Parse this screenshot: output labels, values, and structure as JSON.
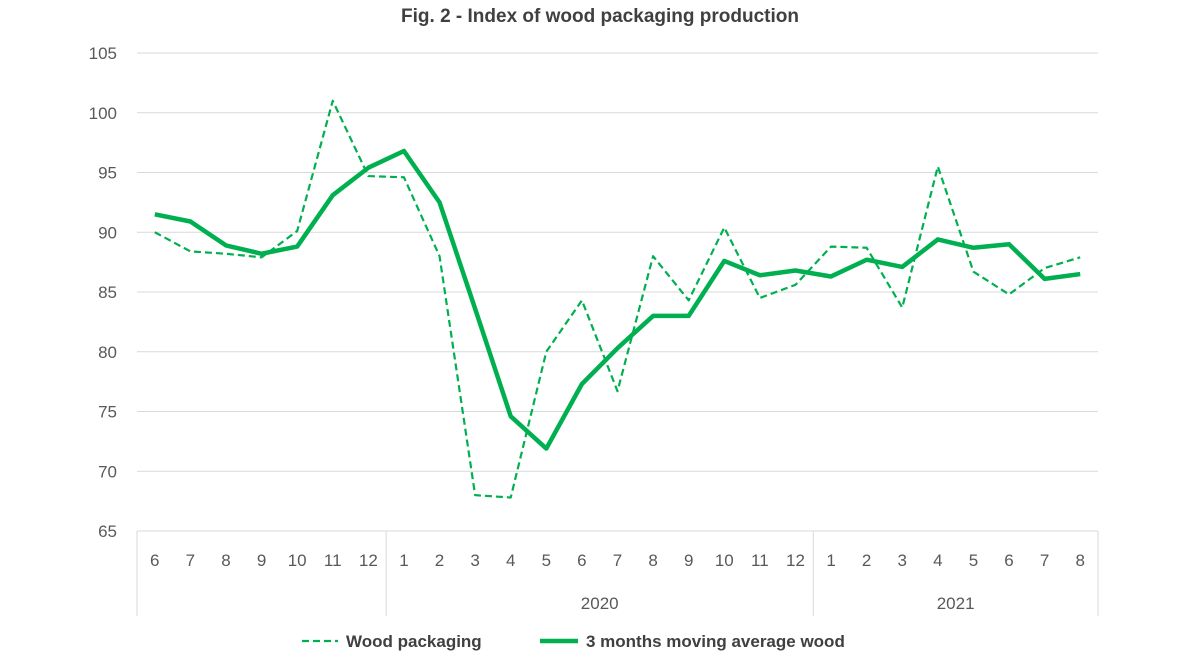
{
  "chart_data": {
    "type": "line",
    "title": "Fig. 2 - Index of wood packaging production",
    "xlabel": "",
    "ylabel": "",
    "ylim": [
      65,
      105
    ],
    "yticks": [
      65,
      70,
      75,
      80,
      85,
      90,
      95,
      100,
      105
    ],
    "grid": true,
    "legend_position": "bottom",
    "categories": [
      "6",
      "7",
      "8",
      "9",
      "10",
      "11",
      "12",
      "1",
      "2",
      "3",
      "4",
      "5",
      "6",
      "7",
      "8",
      "9",
      "10",
      "11",
      "12",
      "1",
      "2",
      "3",
      "4",
      "5",
      "6",
      "7",
      "8"
    ],
    "year_groups": [
      {
        "label": "",
        "count": 7
      },
      {
        "label": "2020",
        "count": 12
      },
      {
        "label": "2021",
        "count": 8
      }
    ],
    "series": [
      {
        "name": "Wood packaging",
        "style": "dashed",
        "color": "#00b050",
        "values": [
          90.0,
          88.4,
          88.2,
          87.9,
          90.1,
          101.0,
          94.7,
          94.6,
          88.0,
          68.0,
          67.8,
          80.0,
          84.3,
          76.7,
          88.0,
          84.3,
          90.4,
          84.5,
          85.6,
          88.8,
          88.7,
          83.7,
          95.5,
          86.7,
          84.8,
          87.0,
          87.9
        ]
      },
      {
        "name": "3 months moving average wood",
        "style": "solid",
        "color": "#00b050",
        "values": [
          91.5,
          90.9,
          88.9,
          88.2,
          88.8,
          93.1,
          95.4,
          96.8,
          92.5,
          83.6,
          74.6,
          71.9,
          77.3,
          80.3,
          83.0,
          83.0,
          87.6,
          86.4,
          86.8,
          86.3,
          87.7,
          87.1,
          89.4,
          88.7,
          89.0,
          86.1,
          86.5
        ]
      }
    ]
  }
}
